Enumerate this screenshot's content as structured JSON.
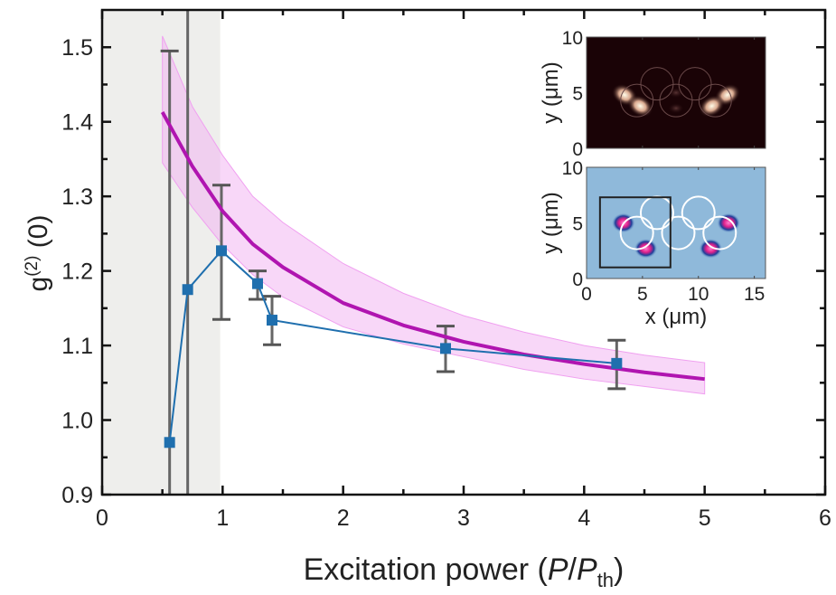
{
  "chart_data": {
    "type": "line",
    "xlabel": "Excitation power (P/P_th)",
    "xlabel_parts": {
      "main": "Excitation power (",
      "p": "P",
      "slash": "/",
      "p2": "P",
      "sub": "th",
      "close": ")"
    },
    "ylabel_parts": {
      "g": "g",
      "sup": "(2)",
      "rest": " (0)"
    },
    "xlim": [
      0,
      6
    ],
    "ylim": [
      0.9,
      1.55
    ],
    "xticks": [
      0,
      1,
      2,
      3,
      4,
      5,
      6
    ],
    "yticks": [
      0.9,
      1.0,
      1.1,
      1.2,
      1.3,
      1.4,
      1.5
    ],
    "ytick_labels": [
      "0.9",
      "1.0",
      "1.1",
      "1.2",
      "1.3",
      "1.4",
      "1.5"
    ],
    "grid": false,
    "shaded_region": {
      "x": [
        0,
        0.98
      ],
      "color": "#eeeeec"
    },
    "measured": {
      "color": "#1f6fae",
      "marker": "square",
      "x": [
        0.56,
        0.71,
        0.99,
        1.29,
        1.41,
        2.85,
        4.27
      ],
      "y": [
        0.97,
        1.175,
        1.227,
        1.183,
        1.134,
        1.096,
        1.076
      ],
      "err_low": [
        0.85,
        0.85,
        1.135,
        1.162,
        1.101,
        1.065,
        1.042
      ],
      "err_high": [
        1.495,
        1.56,
        1.315,
        1.2,
        1.166,
        1.126,
        1.107
      ]
    },
    "theory": {
      "color": "#b015b0",
      "band_color": "#f3b6f3",
      "x": [
        0.5,
        0.75,
        1.0,
        1.25,
        1.5,
        2.0,
        2.5,
        3.0,
        3.5,
        4.0,
        4.5,
        5.0
      ],
      "y": [
        1.413,
        1.34,
        1.28,
        1.236,
        1.205,
        1.157,
        1.127,
        1.105,
        1.088,
        1.075,
        1.064,
        1.055
      ],
      "upper": [
        1.515,
        1.42,
        1.355,
        1.3,
        1.265,
        1.21,
        1.17,
        1.14,
        1.118,
        1.1,
        1.087,
        1.077
      ],
      "lower": [
        1.345,
        1.285,
        1.235,
        1.195,
        1.165,
        1.125,
        1.102,
        1.085,
        1.068,
        1.055,
        1.045,
        1.035
      ]
    },
    "insets": [
      {
        "type": "heatmap",
        "colormap": "dark-brown-to-white",
        "ylabel": "y (μm)",
        "yticks": [
          "0",
          "5",
          "10"
        ],
        "xlim": [
          0,
          16
        ],
        "ylim": [
          0,
          10
        ]
      },
      {
        "type": "heatmap",
        "colormap": "light-blue-to-magenta",
        "ylabel": "y (μm)",
        "xlabel": "x (μm)",
        "yticks": [
          "0",
          "5",
          "10"
        ],
        "xticks": [
          "0",
          "5",
          "10",
          "15"
        ],
        "xlim": [
          0,
          16
        ],
        "ylim": [
          0,
          10
        ]
      }
    ]
  }
}
